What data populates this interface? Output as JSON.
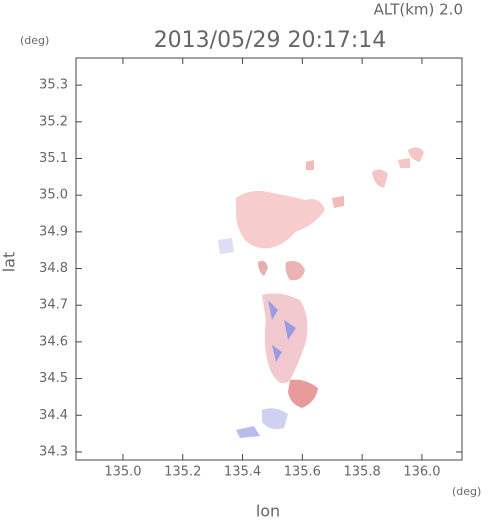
{
  "chart_data": {
    "type": "map",
    "title": "2013/05/29 20:17:14",
    "subtitle": "ALT(km)  2.0",
    "x_label": "lon",
    "y_label": "lat",
    "x_unit": "(deg)",
    "y_unit": "(deg)",
    "xlim": [
      134.843,
      136.134
    ],
    "ylim": [
      34.278,
      35.374
    ],
    "xticks": [
      {
        "value": 135,
        "label": "135.0"
      },
      135.2,
      135.4,
      135.6,
      135.8,
      {
        "value": 136,
        "label": "136.0"
      }
    ],
    "yticks": [
      34.3,
      34.4,
      34.5,
      34.6,
      34.7,
      34.8,
      34.9,
      {
        "value": 35,
        "label": "35.0"
      },
      35.1,
      35.2,
      35.3
    ]
  }
}
